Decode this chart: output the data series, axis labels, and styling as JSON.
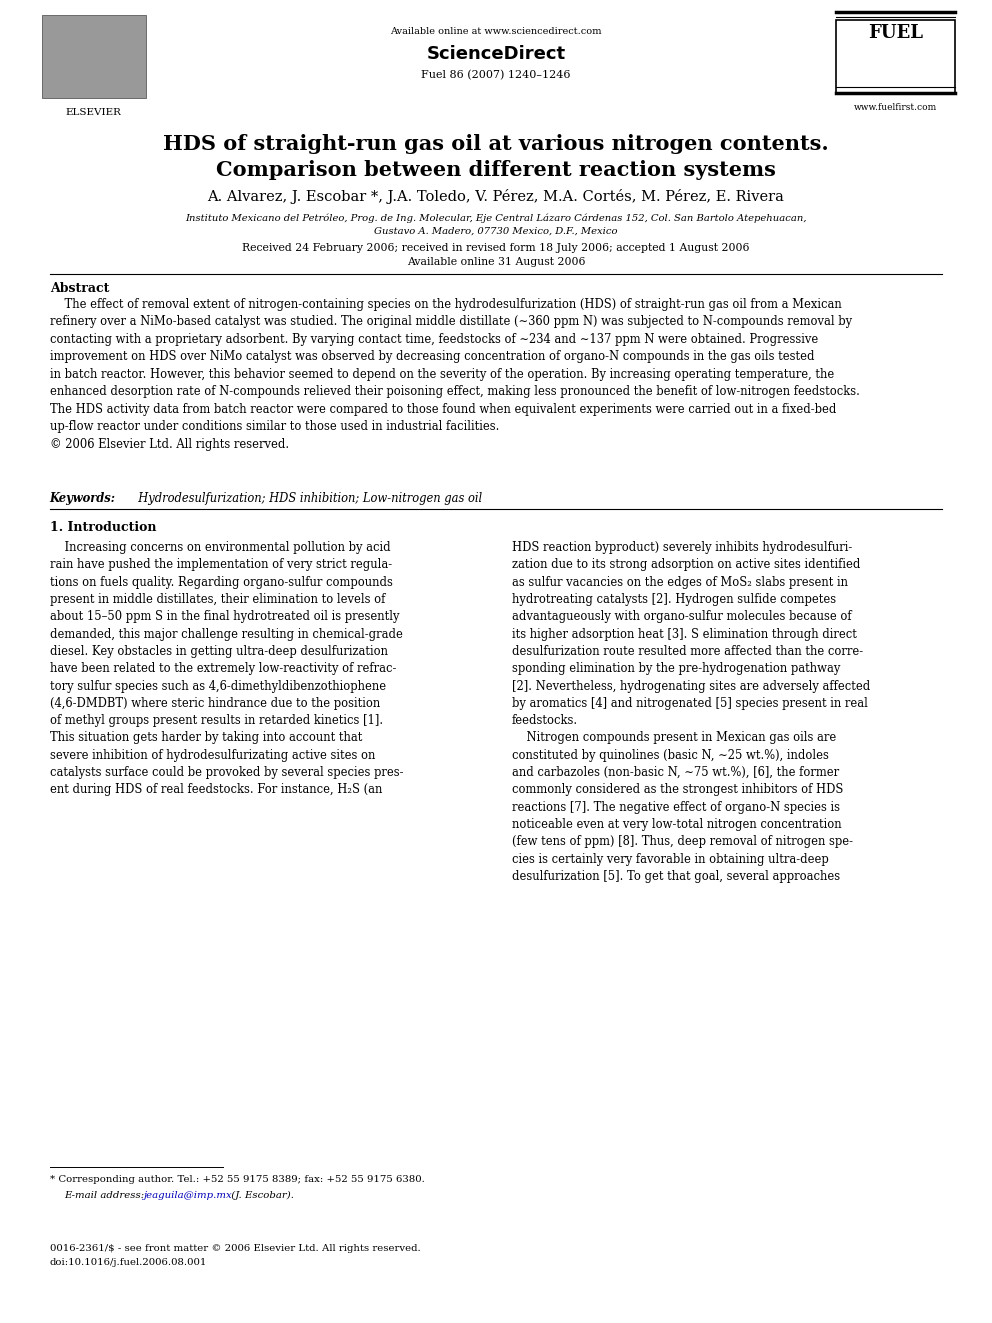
{
  "page_width": 9.92,
  "page_height": 13.23,
  "background_color": "#ffffff",
  "header_online": "Available online at www.sciencedirect.com",
  "header_journal": "Fuel 86 (2007) 1240–1246",
  "header_website": "www.fuelfirst.com",
  "title_line1": "HDS of straight-run gas oil at various nitrogen contents.",
  "title_line2": "Comparison between different reaction systems",
  "authors": "A. Alvarez, J. Escobar *, J.A. Toledo, V. Pérez, M.A. Cortés, M. Pérez, E. Rivera",
  "affil1": "Instituto Mexicano del Petróleo, Prog. de Ing. Molecular, Eje Central Lázaro Cárdenas 152, Col. San Bartolo Atepehuacan,",
  "affil2": "Gustavo A. Madero, 07730 Mexico, D.F., Mexico",
  "received": "Received 24 February 2006; received in revised form 18 July 2006; accepted 1 August 2006",
  "available": "Available online 31 August 2006",
  "abstract_label": "Abstract",
  "abstract_text": "    The effect of removal extent of nitrogen-containing species on the hydrodesulfurization (HDS) of straight-run gas oil from a Mexican\nrefinery over a NiMo-based catalyst was studied. The original middle distillate (∼360 ppm N) was subjected to N-compounds removal by\ncontacting with a proprietary adsorbent. By varying contact time, feedstocks of ∼234 and ∼137 ppm N were obtained. Progressive\nimprovement on HDS over NiMo catalyst was observed by decreasing concentration of organo-N compounds in the gas oils tested\nin batch reactor. However, this behavior seemed to depend on the severity of the operation. By increasing operating temperature, the\nenhanced desorption rate of N-compounds relieved their poisoning effect, making less pronounced the benefit of low-nitrogen feedstocks.\nThe HDS activity data from batch reactor were compared to those found when equivalent experiments were carried out in a fixed-bed\nup-flow reactor under conditions similar to those used in industrial facilities.\n© 2006 Elsevier Ltd. All rights reserved.",
  "keywords_label": "Keywords:",
  "keywords_text": "  Hydrodesulfurization; HDS inhibition; Low-nitrogen gas oil",
  "section1": "1. Introduction",
  "col1_para1": "    Increasing concerns on environmental pollution by acid\nrain have pushed the implementation of very strict regula-\ntions on fuels quality. Regarding organo-sulfur compounds\npresent in middle distillates, their elimination to levels of\nabout 15–50 ppm S in the final hydrotreated oil is presently\ndemanded, this major challenge resulting in chemical-grade\ndiesel. Key obstacles in getting ultra-deep desulfurization\nhave been related to the extremely low-reactivity of refrac-\ntory sulfur species such as 4,6-dimethyldibenzothiophene\n(4,6-DMDBT) where steric hindrance due to the position\nof methyl groups present results in retarded kinetics [1].\nThis situation gets harder by taking into account that\nsevere inhibition of hydrodesulfurizating active sites on\ncatalysts surface could be provoked by several species pres-\nent during HDS of real feedstocks. For instance, H₂S (an",
  "col2_para1": "HDS reaction byproduct) severely inhibits hydrodesulfuri-\nzation due to its strong adsorption on active sites identified\nas sulfur vacancies on the edges of MoS₂ slabs present in\nhydrotreating catalysts [2]. Hydrogen sulfide competes\nadvantagueously with organo-sulfur molecules because of\nits higher adsorption heat [3]. S elimination through direct\ndesulfurization route resulted more affected than the corre-\nsponding elimination by the pre-hydrogenation pathway\n[2]. Nevertheless, hydrogenating sites are adversely affected\nby aromatics [4] and nitrogenated [5] species present in real\nfeedstocks.\n    Nitrogen compounds present in Mexican gas oils are\nconstituted by quinolines (basic N, ∼25 wt.%), indoles\nand carbazoles (non-basic N, ∼75 wt.%), [6], the former\ncommonly considered as the strongest inhibitors of HDS\nreactions [7]. The negative effect of organo-N species is\nnoticeable even at very low-total nitrogen concentration\n(few tens of ppm) [8]. Thus, deep removal of nitrogen spe-\ncies is certainly very favorable in obtaining ultra-deep\ndesulfurization [5]. To get that goal, several approaches",
  "footnote_line1": "* Corresponding author. Tel.: +52 55 9175 8389; fax: +52 55 9175 6380.",
  "footnote_label": "E-mail address:",
  "footnote_email": "jeaguila@imp.mx",
  "footnote_end": " (J. Escobar).",
  "footer1": "0016-2361/$ - see front matter © 2006 Elsevier Ltd. All rights reserved.",
  "footer2": "doi:10.1016/j.fuel.2006.08.001",
  "link_color": "#0000BB",
  "text_color": "#000000"
}
